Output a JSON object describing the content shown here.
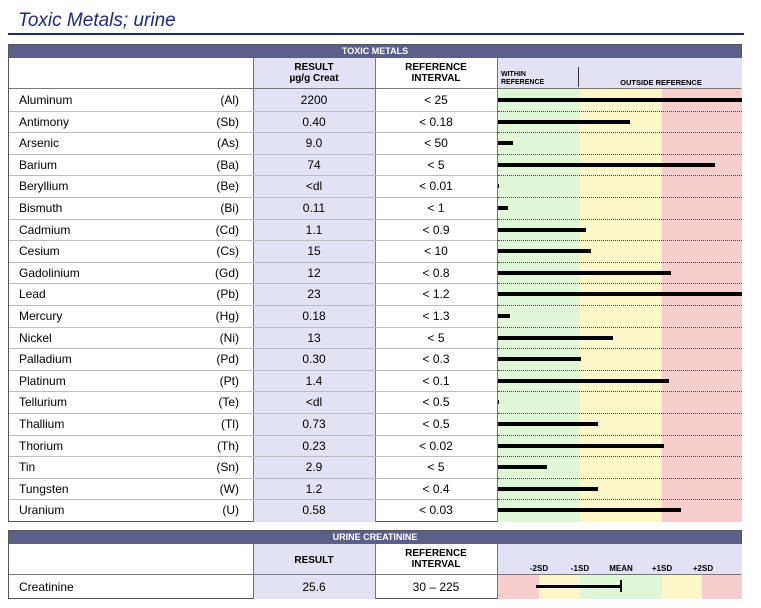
{
  "page_title": "Toxic Metals; urine",
  "toxic": {
    "band": "TOXIC METALS",
    "result_header_1": "RESULT",
    "result_header_2": "µg/g Creat",
    "ref_header_1": "REFERENCE",
    "ref_header_2": "INTERVAL",
    "within_1": "WITHIN",
    "within_2": "REFERENCE",
    "outside": "OUTSIDE REFERENCE",
    "rows": [
      {
        "name": "Aluminum",
        "symbol": "(Al)",
        "result": "2200",
        "ref": "< 25",
        "bar": 1.0
      },
      {
        "name": "Antimony",
        "symbol": "(Sb)",
        "result": "0.40",
        "ref": "< 0.18",
        "bar": 0.54
      },
      {
        "name": "Arsenic",
        "symbol": "(As)",
        "result": "9.0",
        "ref": "< 50",
        "bar": 0.06
      },
      {
        "name": "Barium",
        "symbol": "(Ba)",
        "result": "74",
        "ref": "< 5",
        "bar": 0.89
      },
      {
        "name": "Beryllium",
        "symbol": "(Be)",
        "result": "<dl",
        "ref": "< 0.01",
        "bar": 0.0
      },
      {
        "name": "Bismuth",
        "symbol": "(Bi)",
        "result": "0.11",
        "ref": "< 1",
        "bar": 0.04
      },
      {
        "name": "Cadmium",
        "symbol": "(Cd)",
        "result": "1.1",
        "ref": "< 0.9",
        "bar": 0.36
      },
      {
        "name": "Cesium",
        "symbol": "(Cs)",
        "result": "15",
        "ref": "< 10",
        "bar": 0.38
      },
      {
        "name": "Gadolinium",
        "symbol": "(Gd)",
        "result": "12",
        "ref": "< 0.8",
        "bar": 0.71
      },
      {
        "name": "Lead",
        "symbol": "(Pb)",
        "result": "23",
        "ref": "< 1.2",
        "bar": 1.0
      },
      {
        "name": "Mercury",
        "symbol": "(Hg)",
        "result": "0.18",
        "ref": "< 1.3",
        "bar": 0.05
      },
      {
        "name": "Nickel",
        "symbol": "(Ni)",
        "result": "13",
        "ref": "< 5",
        "bar": 0.47
      },
      {
        "name": "Palladium",
        "symbol": "(Pd)",
        "result": "0.30",
        "ref": "< 0.3",
        "bar": 0.34
      },
      {
        "name": "Platinum",
        "symbol": "(Pt)",
        "result": "1.4",
        "ref": "< 0.1",
        "bar": 0.7
      },
      {
        "name": "Tellurium",
        "symbol": "(Te)",
        "result": "<dl",
        "ref": "< 0.5",
        "bar": 0.0
      },
      {
        "name": "Thallium",
        "symbol": "(Tl)",
        "result": "0.73",
        "ref": "< 0.5",
        "bar": 0.41
      },
      {
        "name": "Thorium",
        "symbol": "(Th)",
        "result": "0.23",
        "ref": "< 0.02",
        "bar": 0.68
      },
      {
        "name": "Tin",
        "symbol": "(Sn)",
        "result": "2.9",
        "ref": "< 5",
        "bar": 0.2
      },
      {
        "name": "Tungsten",
        "symbol": "(W)",
        "result": "1.2",
        "ref": "< 0.4",
        "bar": 0.41
      },
      {
        "name": "Uranium",
        "symbol": "(U)",
        "result": "0.58",
        "ref": "< 0.03",
        "bar": 0.75
      }
    ]
  },
  "creatinine": {
    "band": "URINE CREATININE",
    "result_header": "RESULT",
    "ref_header_1": "REFERENCE",
    "ref_header_2": "INTERVAL",
    "sd_labels": [
      "-2SD",
      "-1SD",
      "MEAN",
      "+1SD",
      "+2SD"
    ],
    "row": {
      "name": "Creatinine",
      "result": "25.6",
      "ref": "30 – 225"
    }
  },
  "colors": {
    "green": "#dff7d6",
    "yellow": "#fbf7c9",
    "red": "#f7cece",
    "result_col": "#e2e2f4",
    "band": "#5b5f8a",
    "title": "#1f2a78"
  }
}
